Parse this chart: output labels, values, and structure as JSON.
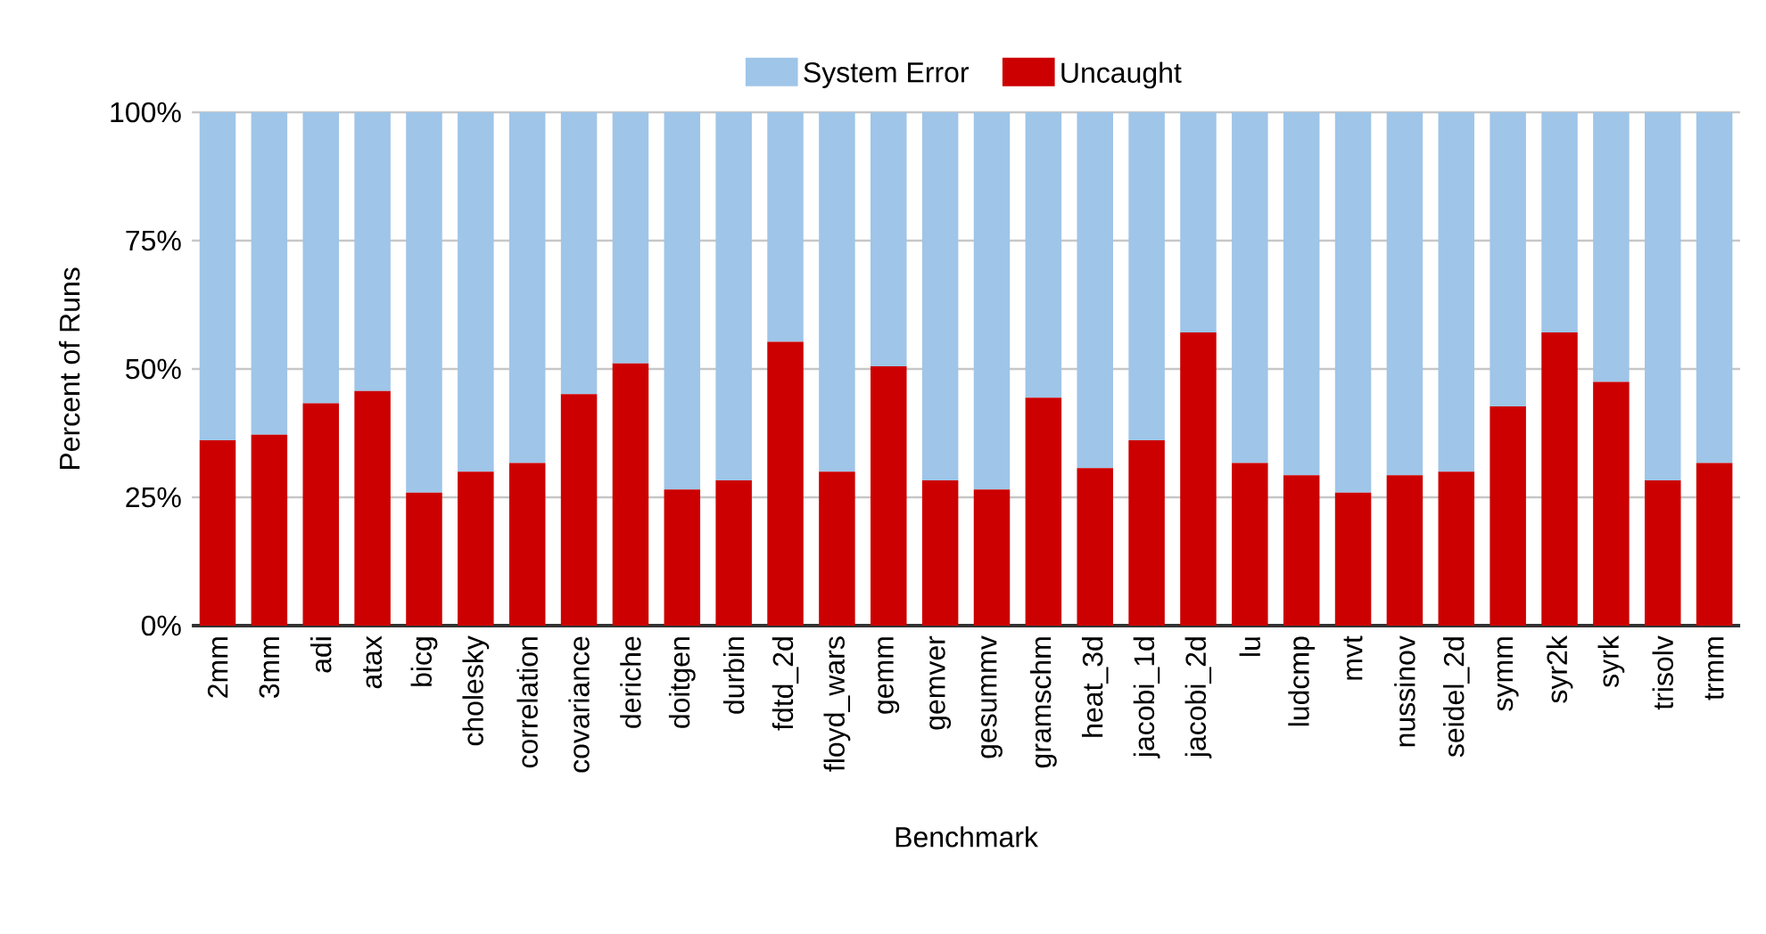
{
  "chart_data": {
    "type": "bar",
    "stacked": true,
    "xlabel": "Benchmark",
    "ylabel": "Percent of Runs",
    "categories": [
      "2mm",
      "3mm",
      "adi",
      "atax",
      "bicg",
      "cholesky",
      "correlation",
      "covariance",
      "deriche",
      "doitgen",
      "durbin",
      "fdtd_2d",
      "floyd_wars",
      "gemm",
      "gemver",
      "gesummv",
      "gramschm",
      "heat_3d",
      "jacobi_1d",
      "jacobi_2d",
      "lu",
      "ludcmp",
      "mvt",
      "nussinov",
      "seidel_2d",
      "symm",
      "syr2k",
      "syrk",
      "trisolv",
      "trmm"
    ],
    "series": [
      {
        "name": "Uncaught",
        "color": "#cc0000",
        "values": [
          36.1,
          37.2,
          43.3,
          45.7,
          25.9,
          30.0,
          31.7,
          45.1,
          51.1,
          26.5,
          28.3,
          55.3,
          30.0,
          50.5,
          28.3,
          26.5,
          44.4,
          30.7,
          36.1,
          57.1,
          31.7,
          29.3,
          25.9,
          29.3,
          30.0,
          42.7,
          57.1,
          47.5,
          28.3,
          31.7
        ]
      },
      {
        "name": "System Error",
        "color": "#9fc5e8",
        "values": [
          63.9,
          62.8,
          56.7,
          54.3,
          74.1,
          70.0,
          68.3,
          54.9,
          48.9,
          73.5,
          71.7,
          44.7,
          70.0,
          49.5,
          71.7,
          73.5,
          55.6,
          69.3,
          63.9,
          42.9,
          68.3,
          70.7,
          74.1,
          70.7,
          70.0,
          57.3,
          42.9,
          52.5,
          71.7,
          68.3
        ]
      }
    ],
    "ylim": [
      0,
      100
    ],
    "yticks": [
      {
        "value": 0,
        "label": "0%"
      },
      {
        "value": 25,
        "label": "25%"
      },
      {
        "value": 50,
        "label": "50%"
      },
      {
        "value": 75,
        "label": "75%"
      },
      {
        "value": 100,
        "label": "100%"
      }
    ],
    "grid": "y",
    "legend": "top"
  }
}
